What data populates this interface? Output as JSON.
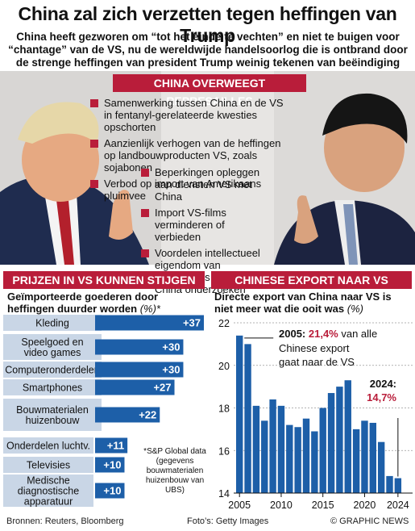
{
  "title": "China zal zich verzetten tegen heffingen van Trump",
  "subtitle": "China heeft gezworen om “tot het einde te vechten” en niet te buigen voor “chantage” van de VS, nu de wereldwijde handelsoorlog die is ontbrand door de strenge heffingen van president Trump weinig tekenen van beëindiging vertoont",
  "colors": {
    "accent": "#b91d3a",
    "bar_blue": "#1d5fa8",
    "label_box": "#c9d6e6"
  },
  "top_banner": "CHINA OVERWEEGT REPRESAILLES",
  "bullets_wide": [
    "Samenwerking tussen China en de VS in fentanyl-gerelateerde kwesties opschorten",
    "Aanzienlijk verhogen van de heffingen op landbouwproducten VS, zoals sojabonen",
    "Verbod op import van Amerikaans pluimvee"
  ],
  "bullets_narrow": [
    "Beperkingen opleggen aan diensten VS met China",
    "Import VS-films verminderen of verbieden",
    "Voordelen intellectueel eigendom van Amerikaans bedrijven in China onderzoeken"
  ],
  "left_banner": "PRIJZEN IN VS KUNNEN STIJGEN",
  "right_banner": "CHINESE EXPORT NAAR VS",
  "left_subtitle": "Geïmporteerde goederen door heffingen duurder worden",
  "left_subtitle_unit": "(%)*",
  "right_subtitle": "Directe export van China naar VS is niet meer wat die ooit was",
  "right_subtitle_unit": "(%)",
  "note": "*S&P Global data (gegevens bouwmaterialen huizenbouw van UBS)",
  "footer_left": "Bronnen: Reuters, Bloomberg",
  "footer_mid": "Foto’s: Getty Images",
  "footer_right": "© GRAPHIC NEWS",
  "chart_data": [
    {
      "type": "bar",
      "orientation": "horizontal",
      "categories": [
        "Kleding",
        "Speelgoed en video games",
        "Computeronderdelen",
        "Smartphones",
        "Bouwmaterialen huizenbouw",
        "Onderdelen luchtv.",
        "Televisies",
        "Medische diagnostische apparatuur"
      ],
      "category_lines": [
        [
          "Kleding"
        ],
        [
          "Speelgoed en",
          "video games"
        ],
        [
          "Computeronderdelen"
        ],
        [
          "Smartphones"
        ],
        [
          "Bouwmaterialen",
          "huizenbouw"
        ],
        [
          "Onderdelen luchtv."
        ],
        [
          "Televisies"
        ],
        [
          "Medische",
          "diagnostische",
          "apparatuur"
        ]
      ],
      "values": [
        37,
        30,
        30,
        27,
        22,
        11,
        10,
        10
      ],
      "value_labels": [
        "+37",
        "+30",
        "+30",
        "+27",
        "+22",
        "+11",
        "+10",
        "+10"
      ]
    },
    {
      "type": "bar",
      "x": [
        2005,
        2006,
        2007,
        2008,
        2009,
        2010,
        2011,
        2012,
        2013,
        2014,
        2015,
        2016,
        2017,
        2018,
        2019,
        2020,
        2021,
        2022,
        2023,
        2024
      ],
      "values": [
        21.4,
        21.0,
        18.1,
        17.4,
        18.4,
        18.1,
        17.2,
        17.1,
        17.5,
        16.9,
        18.0,
        18.7,
        19.0,
        19.3,
        17.0,
        17.4,
        17.3,
        16.4,
        14.8,
        14.7
      ],
      "ylim": [
        14,
        22
      ],
      "yticks": [
        14,
        16,
        18,
        20,
        22
      ],
      "xticks": [
        2005,
        2010,
        2015,
        2020,
        2024
      ],
      "annotations": [
        {
          "x": 2005,
          "year_label": "2005:",
          "value_label": "21,4%",
          "text_rest": "van alle",
          "text_lines": [
            "Chinese export",
            "gaat naar de VS"
          ]
        },
        {
          "x": 2024,
          "year_label": "2024:",
          "value_label": "14,7%"
        }
      ]
    }
  ]
}
